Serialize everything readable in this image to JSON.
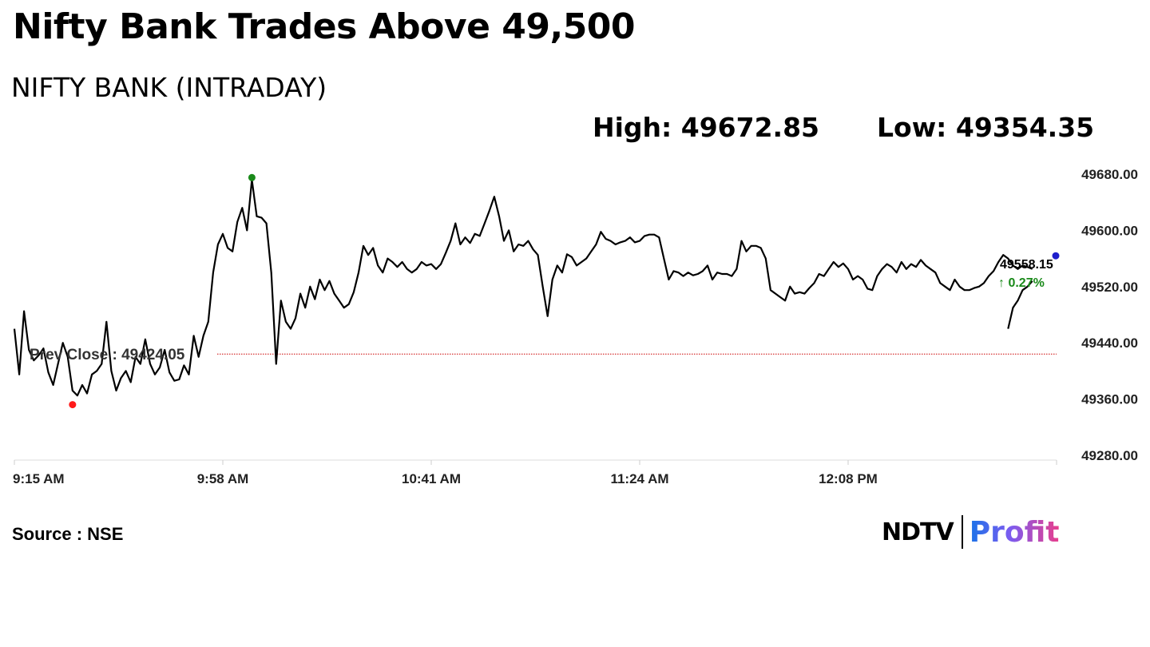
{
  "headline": "Nifty Bank Trades Above 49,500",
  "subtitle": "NIFTY BANK (INTRADAY)",
  "stats": {
    "high": "High: 49672.85",
    "low": "Low: 49354.35"
  },
  "source": "Source : NSE",
  "logo": {
    "brand": "NDTV",
    "product": "Profit"
  },
  "colors": {
    "line": "#000000",
    "prev_close": "#cc0000",
    "high_marker": "#1a8a1a",
    "low_marker": "#ff1a1a",
    "last_marker": "#1f1fcc",
    "change_positive": "#1a8a1a"
  },
  "chart_data": {
    "type": "line",
    "title": "NIFTY BANK (INTRADAY)",
    "ylim": [
      49280,
      49680
    ],
    "y_ticks": [
      "49680.00",
      "49600.00",
      "49520.00",
      "49440.00",
      "49360.00",
      "49280.00"
    ],
    "x_ticks": [
      "9:15 AM",
      "9:58 AM",
      "10:41 AM",
      "11:24 AM",
      "12:08 PM"
    ],
    "xlim_minutes": [
      0,
      215
    ],
    "prev_close": {
      "label": "Prev Close : 49424.05",
      "value": 49424.05
    },
    "high": {
      "value": 49672.85,
      "minute": 49
    },
    "low": {
      "value": 49354.35,
      "minute": 12
    },
    "last": {
      "value": "49558.15",
      "change": "↑ 0.27%",
      "minute": 215
    },
    "series": [
      {
        "x": [
          0,
          1,
          2,
          3,
          4,
          5,
          6,
          7,
          8,
          9,
          10,
          11,
          12,
          13,
          14,
          15,
          16,
          17,
          18,
          19,
          20,
          21,
          22,
          23,
          24,
          25,
          26,
          27,
          28,
          29,
          30,
          31,
          32,
          33,
          34,
          35,
          36,
          37,
          38,
          39,
          40,
          41,
          42,
          43,
          44,
          45,
          46,
          47,
          48,
          49,
          50,
          51,
          52,
          53,
          54,
          55,
          56,
          57,
          58,
          59,
          60,
          61,
          62,
          63,
          64,
          65,
          66,
          67,
          68,
          69,
          70,
          71,
          72,
          73,
          74,
          75,
          76,
          77,
          78,
          79,
          80,
          81,
          82,
          83,
          84,
          85,
          86,
          87,
          88,
          89,
          90,
          91,
          92,
          93,
          94,
          95,
          96,
          97,
          98,
          99,
          100,
          101,
          102,
          103,
          104,
          105,
          106,
          107,
          108,
          109,
          110,
          111,
          112,
          113,
          114,
          115,
          116,
          117,
          118,
          119,
          120,
          121,
          122,
          123,
          124,
          125,
          126,
          127,
          128,
          129,
          130,
          131,
          132,
          133,
          134,
          135,
          136,
          137,
          138,
          139,
          140,
          141,
          142,
          143,
          144,
          145,
          146,
          147,
          148,
          149,
          150,
          151,
          152,
          153,
          154,
          155,
          156,
          157,
          158,
          159,
          160,
          161,
          162,
          163,
          164,
          165,
          166,
          167,
          168,
          169,
          170,
          171,
          172,
          173,
          174,
          175,
          176,
          177,
          178,
          179,
          180,
          181,
          182,
          183,
          184,
          185,
          186,
          187,
          188,
          189,
          190,
          191,
          192,
          193,
          194,
          195,
          196,
          197,
          198,
          199,
          200,
          201,
          202,
          203,
          204,
          205,
          206,
          207,
          208,
          209,
          210
        ],
        "y": [
          49460,
          49395,
          49485,
          49430,
          49415,
          49422,
          49432,
          49398,
          49380,
          49410,
          49440,
          49420,
          49372,
          49365,
          49380,
          49368,
          49395,
          49400,
          49410,
          49470,
          49400,
          49372,
          49390,
          49400,
          49384,
          49420,
          49410,
          49445,
          49410,
          49395,
          49405,
          49430,
          49398,
          49386,
          49388,
          49408,
          49395,
          49450,
          49420,
          49450,
          49470,
          49540,
          49580,
          49595,
          49575,
          49570,
          49612,
          49632,
          49600,
          49672,
          49620,
          49618,
          49610,
          49540,
          49410,
          49500,
          49470,
          49460,
          49475,
          49510,
          49490,
          49520,
          49502,
          49530,
          49515,
          49528,
          49510,
          49500,
          49490,
          49495,
          49512,
          49540,
          49578,
          49565,
          49575,
          49550,
          49540,
          49560,
          49555,
          49548,
          49555,
          49545,
          49540,
          49545,
          49555,
          49550,
          49552,
          49545,
          49552,
          49568,
          49585,
          49610,
          49580,
          49590,
          49582,
          49595,
          49592,
          49610,
          49628,
          49648,
          49620,
          49585,
          49600,
          49570,
          49580,
          49578,
          49585,
          49573,
          49565,
          49520,
          49478,
          49530,
          49550,
          49540,
          49566,
          49562,
          49550,
          49555,
          49560,
          49570,
          49580,
          49598,
          49588,
          49585,
          49580,
          49583,
          49585,
          49590,
          49583,
          49585,
          49592,
          49594,
          49594,
          49590,
          49560,
          49530,
          49542,
          49540,
          49535,
          49540,
          49536,
          49538,
          49542,
          49550,
          49530,
          49540,
          49538,
          49538,
          49535,
          49545,
          49585,
          49570,
          49578,
          49578,
          49575,
          49560,
          49515,
          49510,
          49505,
          49500,
          49520,
          49510,
          49512,
          49510,
          49518,
          49525,
          49538,
          49535,
          49545,
          49555,
          49548,
          49553,
          49545,
          49530,
          49535,
          49530,
          49517,
          49515,
          49535,
          49545,
          49552,
          49548,
          49540,
          49555,
          49545,
          49552,
          49548,
          49558,
          49550,
          49545,
          49540,
          49525,
          49520,
          49515,
          49530,
          49520,
          49515,
          49515,
          49518,
          49520,
          49525,
          49535,
          49542,
          49555,
          49565,
          49560,
          49550,
          49545,
          49550,
          49548,
          49545
        ]
      },
      {
        "x": [
          205,
          206,
          207,
          208,
          209,
          210
        ],
        "y": [
          49460,
          49490,
          49500,
          49515,
          49520,
          49528
        ]
      }
    ]
  }
}
